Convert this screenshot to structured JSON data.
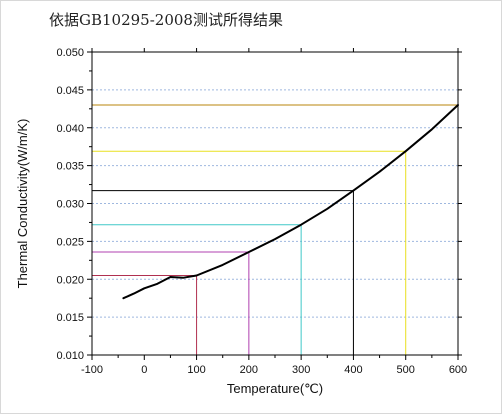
{
  "page": {
    "title": "依据GB10295-2008测试所得结果"
  },
  "chart_data": {
    "type": "line",
    "title": "",
    "xlabel": "Temperature(℃)",
    "ylabel": "Thermal Conductivity(W/m/K)",
    "xlim": [
      -100,
      600
    ],
    "ylim": [
      0.01,
      0.05
    ],
    "xticks": [
      -100,
      0,
      100,
      200,
      300,
      400,
      500,
      600
    ],
    "yticks": [
      0.01,
      0.015,
      0.02,
      0.025,
      0.03,
      0.035,
      0.04,
      0.045,
      0.05
    ],
    "xtick_labels": [
      "-100",
      "0",
      "100",
      "200",
      "300",
      "400",
      "500",
      "600"
    ],
    "ytick_labels": [
      "0.010",
      "0.015",
      "0.020",
      "0.025",
      "0.030",
      "0.035",
      "0.040",
      "0.045",
      "0.050"
    ],
    "grid": "horizontal dotted",
    "series": [
      {
        "color": "#000000",
        "x": [
          -40,
          -20,
          0,
          25,
          50,
          75,
          100,
          150,
          200,
          250,
          300,
          350,
          400,
          450,
          500,
          550,
          600
        ],
        "y": [
          0.0175,
          0.0181,
          0.0188,
          0.0194,
          0.0203,
          0.0202,
          0.0205,
          0.0219,
          0.0236,
          0.0253,
          0.0272,
          0.0293,
          0.0317,
          0.0342,
          0.0369,
          0.0398,
          0.043
        ]
      }
    ],
    "reference_lines": [
      {
        "x": 100,
        "y": 0.0205,
        "color": "#b03050"
      },
      {
        "x": 200,
        "y": 0.0236,
        "color": "#b040b0"
      },
      {
        "x": 300,
        "y": 0.0272,
        "color": "#40c8c8"
      },
      {
        "x": 400,
        "y": 0.0317,
        "color": "#000000"
      },
      {
        "x": 500,
        "y": 0.0369,
        "color": "#e8e020"
      },
      {
        "x": 600,
        "y": 0.043,
        "color": "#b8860b"
      }
    ]
  }
}
